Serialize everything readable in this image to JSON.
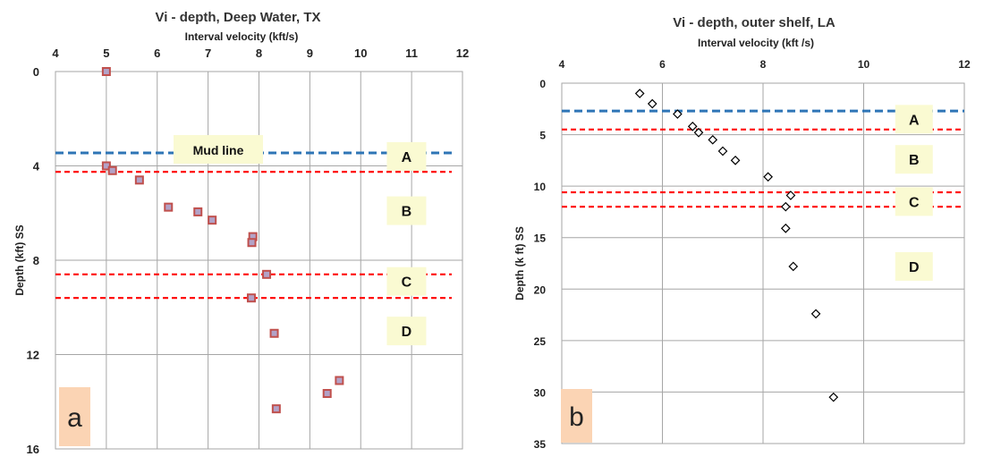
{
  "chart_data": [
    {
      "type": "scatter",
      "title": "Vi - depth, Deep Water, TX",
      "xlabel": "Interval velocity  (kft/s)",
      "ylabel": "Depth (kft) SS",
      "xlim": [
        4,
        12
      ],
      "ylim": [
        0,
        16
      ],
      "y_inverted": true,
      "x_axis_position": "top",
      "grid": true,
      "x_ticks": [
        "4",
        "5",
        "6",
        "7",
        "8",
        "9",
        "10",
        "11",
        "12"
      ],
      "y_ticks": [
        "0",
        "4",
        "8",
        "12",
        "16"
      ],
      "marker": "square",
      "marker_color": "#c0504d",
      "series": [
        {
          "x": [
            5.0,
            5.0,
            5.12,
            5.65,
            6.22,
            6.8,
            7.08,
            7.88,
            7.86,
            8.15,
            7.85,
            8.3,
            9.58,
            9.34,
            8.34
          ],
          "y": [
            0.0,
            4.0,
            4.2,
            4.6,
            5.75,
            5.95,
            6.3,
            7.0,
            7.25,
            8.6,
            9.6,
            11.1,
            13.1,
            13.65,
            14.3
          ]
        }
      ],
      "horizontal_lines": [
        {
          "y": 3.45,
          "color": "#2e75b6",
          "style": "dashed"
        },
        {
          "y": 4.25,
          "color": "#ff0000",
          "style": "dashed"
        },
        {
          "y": 8.6,
          "color": "#ff0000",
          "style": "dashed"
        },
        {
          "y": 9.6,
          "color": "#ff0000",
          "style": "dashed"
        }
      ],
      "annotations": [
        {
          "text": "Mud line",
          "x": 7.2,
          "y": 3.3
        },
        {
          "text": "A",
          "x": 10.9,
          "y": 3.6
        },
        {
          "text": "B",
          "x": 10.9,
          "y": 5.9
        },
        {
          "text": "C",
          "x": 10.9,
          "y": 8.9
        },
        {
          "text": "D",
          "x": 10.9,
          "y": 11.0
        }
      ],
      "panel_tag": "a"
    },
    {
      "type": "scatter",
      "title": "Vi - depth, outer shelf, LA",
      "xlabel": "Interval velocity (kft /s)",
      "ylabel": "Depth (k ft) SS",
      "xlim": [
        4,
        12
      ],
      "ylim": [
        0,
        35
      ],
      "y_inverted": true,
      "x_axis_position": "top",
      "grid": true,
      "x_ticks": [
        "4",
        "6",
        "8",
        "10",
        "12"
      ],
      "y_ticks": [
        "0",
        "5",
        "10",
        "15",
        "20",
        "25",
        "30",
        "35"
      ],
      "marker": "diamond",
      "marker_color": "#000000",
      "series": [
        {
          "x": [
            5.55,
            5.8,
            6.3,
            6.6,
            6.72,
            7.0,
            7.2,
            7.45,
            8.1,
            8.55,
            8.45,
            8.45,
            8.6,
            9.05,
            9.4
          ],
          "y": [
            1.0,
            2.0,
            3.0,
            4.2,
            4.8,
            5.5,
            6.6,
            7.5,
            9.1,
            10.9,
            12.0,
            14.1,
            17.8,
            22.4,
            30.5
          ]
        }
      ],
      "horizontal_lines": [
        {
          "y": 2.7,
          "color": "#2e75b6",
          "style": "dashed"
        },
        {
          "y": 4.5,
          "color": "#ff0000",
          "style": "dashed"
        },
        {
          "y": 10.6,
          "color": "#ff0000",
          "style": "dashed"
        },
        {
          "y": 12.0,
          "color": "#ff0000",
          "style": "dashed"
        }
      ],
      "annotations": [
        {
          "text": "A",
          "x": 11.0,
          "y": 3.5
        },
        {
          "text": "B",
          "x": 11.0,
          "y": 7.4
        },
        {
          "text": "C",
          "x": 11.0,
          "y": 11.5
        },
        {
          "text": "D",
          "x": 11.0,
          "y": 17.8
        }
      ],
      "panel_tag": "b"
    }
  ],
  "colors": {
    "grid": "#a6a6a6",
    "label_box": "#fafad2",
    "panel_tag_box": "#fbd4b4"
  }
}
